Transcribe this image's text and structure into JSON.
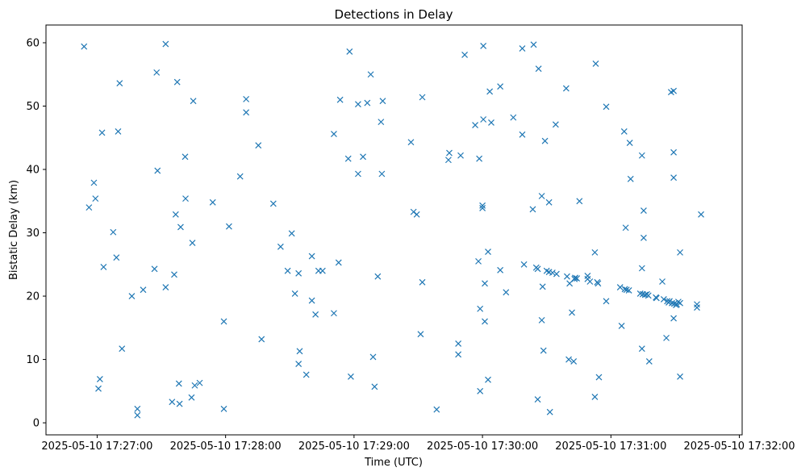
{
  "chart_data": {
    "type": "scatter",
    "title": "Detections in Delay",
    "xlabel": "Time (UTC)",
    "ylabel": "Bistatic Delay (km)",
    "marker": "x",
    "color": "#1f77b4",
    "grid": false,
    "x_unit": "seconds after 2025-05-10 17:27:00",
    "xlim": [
      -23.9,
      301.3
    ],
    "ylim": [
      -1.9,
      62.8
    ],
    "x_ticks": [
      {
        "value": 0,
        "label": "2025-05-10 17:27:00"
      },
      {
        "value": 60,
        "label": "2025-05-10 17:28:00"
      },
      {
        "value": 120,
        "label": "2025-05-10 17:29:00"
      },
      {
        "value": 180,
        "label": "2025-05-10 17:30:00"
      },
      {
        "value": 240,
        "label": "2025-05-10 17:31:00"
      },
      {
        "value": 300,
        "label": "2025-05-10 17:32:00"
      }
    ],
    "y_ticks": [
      {
        "value": 0,
        "label": "0"
      },
      {
        "value": 10,
        "label": "10"
      },
      {
        "value": 20,
        "label": "20"
      },
      {
        "value": 30,
        "label": "30"
      },
      {
        "value": 40,
        "label": "40"
      },
      {
        "value": 50,
        "label": "50"
      },
      {
        "value": 60,
        "label": "60"
      }
    ],
    "points": [
      [
        -6.1,
        59.4
      ],
      [
        -3.8,
        34.0
      ],
      [
        -1.5,
        37.9
      ],
      [
        -0.8,
        35.4
      ],
      [
        0.6,
        5.4
      ],
      [
        1.3,
        6.9
      ],
      [
        2.3,
        45.8
      ],
      [
        3.0,
        24.6
      ],
      [
        7.5,
        30.1
      ],
      [
        9.0,
        26.1
      ],
      [
        9.8,
        46.0
      ],
      [
        10.5,
        53.6
      ],
      [
        11.6,
        11.7
      ],
      [
        16.2,
        20.0
      ],
      [
        18.8,
        2.2
      ],
      [
        18.8,
        1.2
      ],
      [
        21.5,
        21.0
      ],
      [
        26.8,
        24.3
      ],
      [
        27.8,
        55.3
      ],
      [
        28.2,
        39.8
      ],
      [
        32.0,
        59.8
      ],
      [
        32.0,
        21.4
      ],
      [
        35.0,
        3.3
      ],
      [
        36.0,
        23.4
      ],
      [
        36.7,
        32.9
      ],
      [
        37.4,
        53.8
      ],
      [
        38.2,
        6.2
      ],
      [
        38.5,
        3.0
      ],
      [
        39.0,
        30.9
      ],
      [
        41.1,
        42.0
      ],
      [
        41.3,
        35.4
      ],
      [
        44.1,
        4.0
      ],
      [
        44.5,
        28.4
      ],
      [
        44.9,
        50.8
      ],
      [
        45.6,
        5.9
      ],
      [
        47.9,
        6.3
      ],
      [
        54.0,
        34.8
      ],
      [
        59.2,
        2.2
      ],
      [
        59.2,
        16.0
      ],
      [
        61.6,
        31.0
      ],
      [
        66.8,
        38.9
      ],
      [
        69.6,
        51.1
      ],
      [
        69.6,
        49.0
      ],
      [
        75.3,
        43.8
      ],
      [
        76.8,
        13.2
      ],
      [
        82.3,
        34.6
      ],
      [
        85.7,
        27.8
      ],
      [
        89.0,
        24.0
      ],
      [
        90.9,
        29.9
      ],
      [
        92.4,
        20.4
      ],
      [
        94.1,
        23.6
      ],
      [
        94.1,
        9.3
      ],
      [
        94.6,
        11.3
      ],
      [
        97.7,
        7.6
      ],
      [
        100.3,
        26.3
      ],
      [
        100.3,
        19.3
      ],
      [
        102.0,
        17.1
      ],
      [
        103.4,
        24.0
      ],
      [
        105.3,
        24.0
      ],
      [
        110.6,
        17.3
      ],
      [
        110.6,
        45.6
      ],
      [
        112.8,
        25.3
      ],
      [
        113.5,
        51.0
      ],
      [
        117.3,
        41.7
      ],
      [
        117.9,
        58.6
      ],
      [
        118.5,
        7.3
      ],
      [
        121.9,
        50.3
      ],
      [
        121.9,
        39.3
      ],
      [
        124.2,
        42.0
      ],
      [
        126.2,
        50.5
      ],
      [
        127.8,
        55.0
      ],
      [
        128.9,
        10.4
      ],
      [
        129.6,
        5.7
      ],
      [
        131.1,
        23.1
      ],
      [
        132.6,
        47.5
      ],
      [
        133.0,
        39.3
      ],
      [
        133.4,
        50.8
      ],
      [
        146.6,
        44.3
      ],
      [
        147.8,
        33.3
      ],
      [
        149.3,
        32.9
      ],
      [
        151.1,
        14.0
      ],
      [
        151.9,
        51.4
      ],
      [
        151.9,
        22.2
      ],
      [
        158.6,
        2.1
      ],
      [
        164.1,
        41.5
      ],
      [
        164.5,
        42.6
      ],
      [
        168.7,
        12.5
      ],
      [
        168.7,
        10.8
      ],
      [
        169.8,
        42.2
      ],
      [
        171.7,
        58.1
      ],
      [
        176.6,
        47.0
      ],
      [
        178.1,
        25.5
      ],
      [
        178.5,
        41.7
      ],
      [
        178.9,
        18.0
      ],
      [
        178.9,
        5.0
      ],
      [
        180.0,
        34.3
      ],
      [
        180.0,
        33.9
      ],
      [
        180.4,
        47.9
      ],
      [
        180.4,
        59.5
      ],
      [
        181.1,
        22.0
      ],
      [
        181.1,
        16.0
      ],
      [
        182.6,
        6.8
      ],
      [
        182.6,
        27.0
      ],
      [
        183.4,
        52.3
      ],
      [
        184.1,
        47.4
      ],
      [
        188.3,
        53.1
      ],
      [
        188.3,
        24.1
      ],
      [
        191.0,
        20.6
      ],
      [
        194.4,
        48.2
      ],
      [
        198.6,
        59.1
      ],
      [
        198.6,
        45.5
      ],
      [
        199.4,
        25.0
      ],
      [
        203.5,
        33.7
      ],
      [
        203.9,
        59.7
      ],
      [
        205.1,
        24.5
      ],
      [
        205.8,
        24.3
      ],
      [
        205.8,
        3.7
      ],
      [
        206.2,
        55.9
      ],
      [
        207.7,
        35.8
      ],
      [
        207.7,
        16.2
      ],
      [
        208.1,
        21.5
      ],
      [
        208.5,
        11.4
      ],
      [
        209.2,
        44.5
      ],
      [
        210.0,
        24.0
      ],
      [
        211.1,
        34.8
      ],
      [
        211.1,
        23.8
      ],
      [
        211.5,
        1.7
      ],
      [
        212.7,
        23.7
      ],
      [
        214.2,
        47.1
      ],
      [
        214.6,
        23.5
      ],
      [
        219.1,
        52.8
      ],
      [
        219.5,
        23.1
      ],
      [
        220.3,
        10.0
      ],
      [
        220.7,
        22.0
      ],
      [
        221.8,
        17.4
      ],
      [
        222.6,
        9.7
      ],
      [
        223.0,
        22.7
      ],
      [
        223.3,
        22.9
      ],
      [
        224.1,
        22.8
      ],
      [
        225.3,
        35.0
      ],
      [
        229.1,
        23.2
      ],
      [
        229.1,
        22.7
      ],
      [
        230.2,
        22.3
      ],
      [
        232.5,
        26.9
      ],
      [
        232.5,
        4.1
      ],
      [
        232.9,
        56.7
      ],
      [
        233.6,
        22.2
      ],
      [
        234.0,
        22.0
      ],
      [
        234.4,
        7.2
      ],
      [
        237.8,
        49.9
      ],
      [
        237.8,
        19.2
      ],
      [
        244.3,
        21.4
      ],
      [
        245.0,
        15.3
      ],
      [
        246.2,
        46.0
      ],
      [
        246.5,
        21.1
      ],
      [
        246.9,
        30.8
      ],
      [
        247.3,
        21.0
      ],
      [
        248.4,
        20.9
      ],
      [
        248.8,
        44.2
      ],
      [
        249.2,
        38.5
      ],
      [
        253.7,
        20.4
      ],
      [
        254.5,
        42.2
      ],
      [
        254.5,
        24.4
      ],
      [
        254.5,
        11.7
      ],
      [
        254.9,
        20.3
      ],
      [
        255.3,
        33.5
      ],
      [
        255.3,
        29.2
      ],
      [
        256.0,
        20.2
      ],
      [
        256.8,
        20.3
      ],
      [
        257.5,
        20.1
      ],
      [
        257.9,
        9.7
      ],
      [
        261.0,
        19.8
      ],
      [
        261.3,
        19.7
      ],
      [
        264.0,
        22.3
      ],
      [
        264.7,
        19.5
      ],
      [
        265.9,
        13.4
      ],
      [
        266.3,
        19.2
      ],
      [
        267.0,
        19.0
      ],
      [
        267.4,
        19.2
      ],
      [
        268.1,
        52.2
      ],
      [
        268.5,
        18.9
      ],
      [
        269.3,
        52.4
      ],
      [
        269.3,
        42.7
      ],
      [
        269.3,
        38.7
      ],
      [
        269.3,
        16.5
      ],
      [
        269.6,
        18.8
      ],
      [
        270.4,
        18.6
      ],
      [
        270.8,
        18.7
      ],
      [
        271.5,
        19.1
      ],
      [
        272.3,
        26.9
      ],
      [
        272.3,
        7.3
      ],
      [
        272.3,
        18.9
      ],
      [
        280.2,
        18.7
      ],
      [
        280.2,
        18.2
      ],
      [
        282.1,
        32.9
      ]
    ]
  }
}
